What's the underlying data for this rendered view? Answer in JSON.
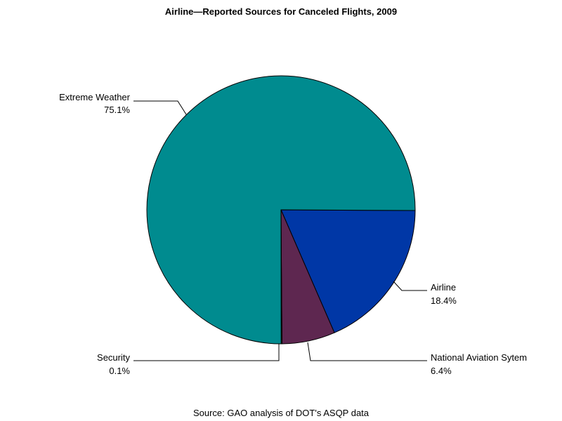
{
  "chart_data": {
    "type": "pie",
    "title": "Airline—Reported Sources for Canceled Flights, 2009",
    "source": "Source: GAO analysis of DOT's ASQP data",
    "slices": [
      {
        "label": "Airline",
        "value_label": "18.4%",
        "value": 18.4,
        "color": "#0037A6"
      },
      {
        "label": "National Aviation Sytem",
        "value_label": "6.4%",
        "value": 6.4,
        "color": "#5E2750"
      },
      {
        "label": "Security",
        "value_label": "0.1%",
        "value": 0.1,
        "color": "#9C8A2E"
      },
      {
        "label": "Extreme Weather",
        "value_label": "75.1%",
        "value": 75.1,
        "color": "#008B8F"
      }
    ]
  }
}
